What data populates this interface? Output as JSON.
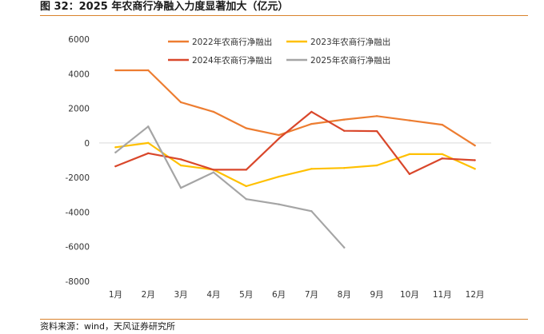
{
  "title": "图 32：2025 年农商行净融入力度显著加大（亿元）",
  "source": "资料来源：wind，天风证券研究所",
  "chart_data": {
    "type": "line",
    "categories": [
      "1月",
      "2月",
      "3月",
      "4月",
      "5月",
      "6月",
      "7月",
      "8月",
      "9月",
      "10月",
      "11月",
      "12月"
    ],
    "ylim": [
      -8000,
      6000
    ],
    "yticks": [
      "6000",
      "4000",
      "2000",
      "0",
      "-2000",
      "-4000",
      "-6000",
      "-8000"
    ],
    "ytick_values": [
      6000,
      4000,
      2000,
      0,
      -2000,
      -4000,
      -6000,
      -8000
    ],
    "grid": false,
    "legend_position": "top",
    "series": [
      {
        "name": "2022年农商行净融出",
        "color": "#ed7d31",
        "values": [
          4200,
          4200,
          2350,
          1800,
          850,
          450,
          1100,
          1350,
          1550,
          1300,
          1050,
          -150
        ]
      },
      {
        "name": "2023年农商行净融出",
        "color": "#ffc000",
        "values": [
          -250,
          0,
          -1300,
          -1550,
          -2500,
          -1950,
          -1500,
          -1450,
          -1300,
          -650,
          -650,
          -1500
        ]
      },
      {
        "name": "2024年农商行净融出",
        "color": "#d9472b",
        "values": [
          -1350,
          -600,
          -950,
          -1550,
          -1550,
          250,
          1800,
          700,
          680,
          -1800,
          -900,
          -1000
        ]
      },
      {
        "name": "2025年农商行净融出",
        "color": "#a5a5a5",
        "values": [
          -550,
          950,
          -2600,
          -1700,
          -3250,
          -3550,
          -3950,
          -6050,
          null,
          null,
          null,
          null
        ]
      }
    ]
  }
}
